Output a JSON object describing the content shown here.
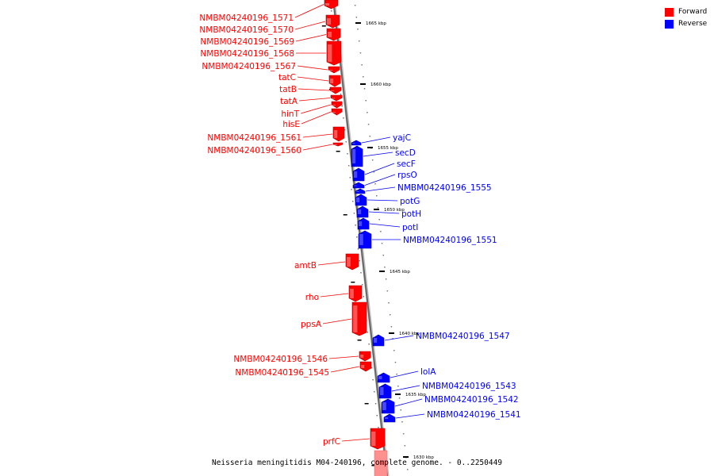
{
  "caption": "Neisseria meningitidis M04-240196, complete genome. - 0..2250449",
  "legend": [
    {
      "label": "Forward",
      "color": "#ff0000"
    },
    {
      "label": "Reverse",
      "color": "#0000ff"
    }
  ],
  "ticks": [
    "1665 kbp",
    "1660 kbp",
    "1655 kbp",
    "1650 kbp",
    "1645 kbp",
    "1640 kbp",
    "1635 kbp",
    "1630 kbp"
  ],
  "genes": [
    {
      "name": "NMBM04240196_1571",
      "strand": "forward"
    },
    {
      "name": "NMBM04240196_1570",
      "strand": "forward"
    },
    {
      "name": "NMBM04240196_1569",
      "strand": "forward"
    },
    {
      "name": "NMBM04240196_1568",
      "strand": "forward"
    },
    {
      "name": "NMBM04240196_1567",
      "strand": "forward"
    },
    {
      "name": "tatC",
      "strand": "forward"
    },
    {
      "name": "tatB",
      "strand": "forward"
    },
    {
      "name": "tatA",
      "strand": "forward"
    },
    {
      "name": "hinT",
      "strand": "forward"
    },
    {
      "name": "hisE",
      "strand": "forward"
    },
    {
      "name": "NMBM04240196_1561",
      "strand": "forward"
    },
    {
      "name": "NMBM04240196_1560",
      "strand": "forward"
    },
    {
      "name": "yajC",
      "strand": "reverse"
    },
    {
      "name": "secD",
      "strand": "reverse"
    },
    {
      "name": "secF",
      "strand": "reverse"
    },
    {
      "name": "rpsO",
      "strand": "reverse"
    },
    {
      "name": "NMBM04240196_1555",
      "strand": "reverse"
    },
    {
      "name": "potG",
      "strand": "reverse"
    },
    {
      "name": "potH",
      "strand": "reverse"
    },
    {
      "name": "potI",
      "strand": "reverse"
    },
    {
      "name": "NMBM04240196_1551",
      "strand": "reverse"
    },
    {
      "name": "amtB",
      "strand": "forward"
    },
    {
      "name": "rho",
      "strand": "forward"
    },
    {
      "name": "ppsA",
      "strand": "forward"
    },
    {
      "name": "NMBM04240196_1547",
      "strand": "reverse"
    },
    {
      "name": "NMBM04240196_1546",
      "strand": "forward"
    },
    {
      "name": "NMBM04240196_1545",
      "strand": "forward"
    },
    {
      "name": "lolA",
      "strand": "reverse"
    },
    {
      "name": "NMBM04240196_1543",
      "strand": "reverse"
    },
    {
      "name": "NMBM04240196_1542",
      "strand": "reverse"
    },
    {
      "name": "NMBM04240196_1541",
      "strand": "reverse"
    },
    {
      "name": "prfC",
      "strand": "forward"
    }
  ]
}
